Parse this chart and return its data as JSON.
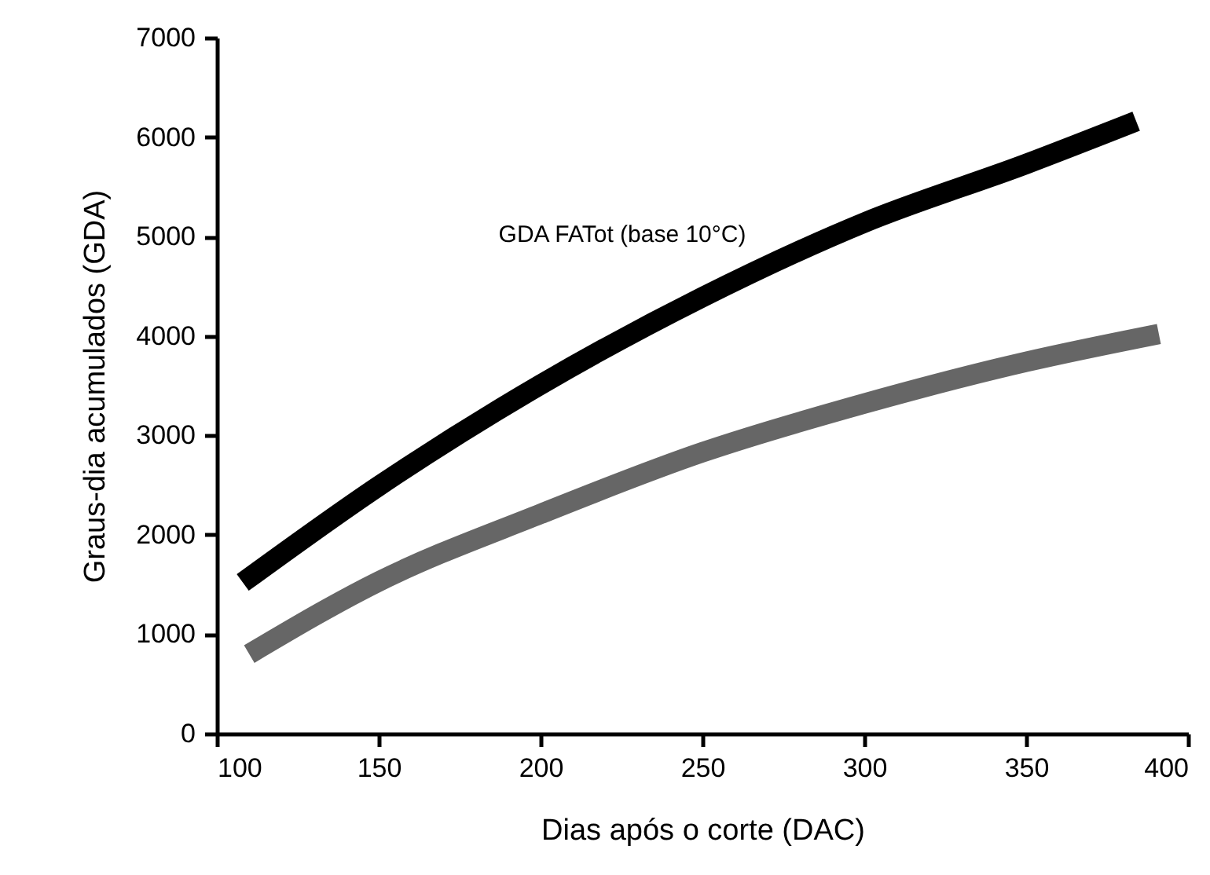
{
  "chart_data": {
    "type": "line",
    "xlabel": "Dias após o corte (DAC)",
    "ylabel": "Graus-dia acumulados (GDA)",
    "xlim": [
      100,
      400
    ],
    "xticks": [
      100,
      150,
      200,
      250,
      300,
      350,
      400
    ],
    "ylim": [
      0,
      7000
    ],
    "yticks": [
      0,
      1000,
      2000,
      3000,
      4000,
      5000,
      6000,
      7000
    ],
    "grid": false,
    "legend": false,
    "marker": "none",
    "line_style": "solid",
    "series": [
      {
        "name": "GDA FATot (base 10°C)",
        "color": "#000000",
        "x": [
          108,
          150,
          200,
          250,
          300,
          350,
          384
        ],
        "values": [
          1520,
          2490,
          3510,
          4390,
          5140,
          5730,
          6160
        ]
      },
      {
        "color": "#666666",
        "x": [
          110,
          150,
          200,
          250,
          300,
          350,
          391
        ],
        "values": [
          800,
          1530,
          2210,
          2830,
          3320,
          3740,
          4020
        ]
      }
    ]
  }
}
